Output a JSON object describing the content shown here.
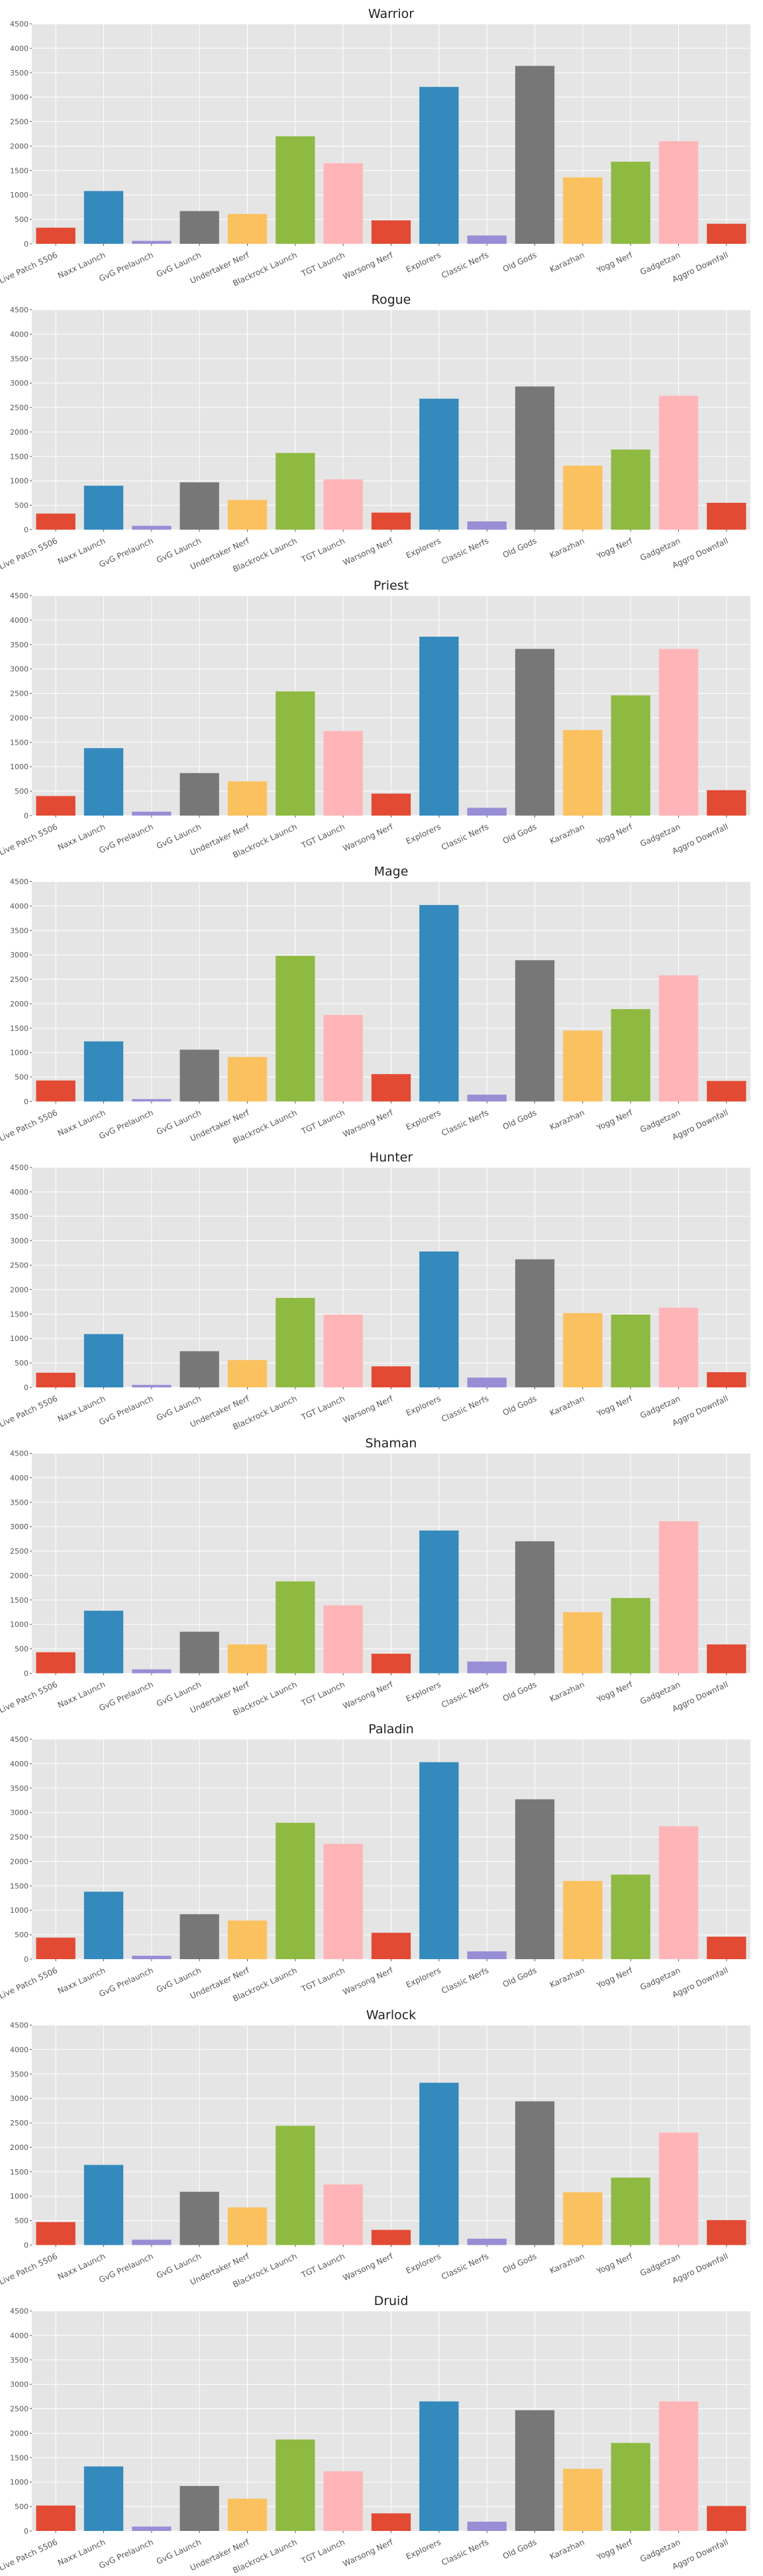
{
  "chart_data": [
    {
      "type": "bar",
      "title": "Warrior",
      "xlabel": "",
      "ylabel": "",
      "ylim": [
        0,
        4500
      ],
      "yticks": [
        0,
        500,
        1000,
        1500,
        2000,
        2500,
        3000,
        3500,
        4000,
        4500
      ],
      "grid": true,
      "categories": [
        "Live Patch 5506",
        "Naxx Launch",
        "GvG Prelaunch",
        "GvG Launch",
        "Undertaker Nerf",
        "Blackrock Launch",
        "TGT Launch",
        "Warsong Nerf",
        "Explorers",
        "Classic Nerfs",
        "Old Gods",
        "Karazhan",
        "Yogg Nerf",
        "Gadgetzan",
        "Aggro Downfall"
      ],
      "values": [
        330,
        1080,
        60,
        670,
        610,
        2200,
        1650,
        480,
        3210,
        170,
        3640,
        1360,
        1680,
        2100,
        410
      ]
    },
    {
      "type": "bar",
      "title": "Rogue",
      "xlabel": "",
      "ylabel": "",
      "ylim": [
        0,
        4500
      ],
      "yticks": [
        0,
        500,
        1000,
        1500,
        2000,
        2500,
        3000,
        3500,
        4000,
        4500
      ],
      "grid": true,
      "categories": [
        "Live Patch 5506",
        "Naxx Launch",
        "GvG Prelaunch",
        "GvG Launch",
        "Undertaker Nerf",
        "Blackrock Launch",
        "TGT Launch",
        "Warsong Nerf",
        "Explorers",
        "Classic Nerfs",
        "Old Gods",
        "Karazhan",
        "Yogg Nerf",
        "Gadgetzan",
        "Aggro Downfall"
      ],
      "values": [
        330,
        900,
        80,
        970,
        610,
        1570,
        1030,
        350,
        2680,
        170,
        2930,
        1310,
        1640,
        2740,
        550
      ]
    },
    {
      "type": "bar",
      "title": "Priest",
      "xlabel": "",
      "ylabel": "",
      "ylim": [
        0,
        4500
      ],
      "yticks": [
        0,
        500,
        1000,
        1500,
        2000,
        2500,
        3000,
        3500,
        4000,
        4500
      ],
      "grid": true,
      "categories": [
        "Live Patch 5506",
        "Naxx Launch",
        "GvG Prelaunch",
        "GvG Launch",
        "Undertaker Nerf",
        "Blackrock Launch",
        "TGT Launch",
        "Warsong Nerf",
        "Explorers",
        "Classic Nerfs",
        "Old Gods",
        "Karazhan",
        "Yogg Nerf",
        "Gadgetzan",
        "Aggro Downfall"
      ],
      "values": [
        400,
        1380,
        80,
        870,
        700,
        2540,
        1730,
        450,
        3660,
        160,
        3410,
        1750,
        2460,
        3410,
        520
      ]
    },
    {
      "type": "bar",
      "title": "Mage",
      "xlabel": "",
      "ylabel": "",
      "ylim": [
        0,
        4500
      ],
      "yticks": [
        0,
        500,
        1000,
        1500,
        2000,
        2500,
        3000,
        3500,
        4000,
        4500
      ],
      "grid": true,
      "categories": [
        "Live Patch 5506",
        "Naxx Launch",
        "GvG Prelaunch",
        "GvG Launch",
        "Undertaker Nerf",
        "Blackrock Launch",
        "TGT Launch",
        "Warsong Nerf",
        "Explorers",
        "Classic Nerfs",
        "Old Gods",
        "Karazhan",
        "Yogg Nerf",
        "Gadgetzan",
        "Aggro Downfall"
      ],
      "values": [
        430,
        1230,
        50,
        1060,
        910,
        2980,
        1770,
        560,
        4020,
        140,
        2890,
        1450,
        1890,
        2580,
        420
      ]
    },
    {
      "type": "bar",
      "title": "Hunter",
      "xlabel": "",
      "ylabel": "",
      "ylim": [
        0,
        4500
      ],
      "yticks": [
        0,
        500,
        1000,
        1500,
        2000,
        2500,
        3000,
        3500,
        4000,
        4500
      ],
      "grid": true,
      "categories": [
        "Live Patch 5506",
        "Naxx Launch",
        "GvG Prelaunch",
        "GvG Launch",
        "Undertaker Nerf",
        "Blackrock Launch",
        "TGT Launch",
        "Warsong Nerf",
        "Explorers",
        "Classic Nerfs",
        "Old Gods",
        "Karazhan",
        "Yogg Nerf",
        "Gadgetzan",
        "Aggro Downfall"
      ],
      "values": [
        300,
        1090,
        50,
        740,
        560,
        1830,
        1490,
        430,
        2780,
        200,
        2620,
        1520,
        1490,
        1630,
        310
      ]
    },
    {
      "type": "bar",
      "title": "Shaman",
      "xlabel": "",
      "ylabel": "",
      "ylim": [
        0,
        4500
      ],
      "yticks": [
        0,
        500,
        1000,
        1500,
        2000,
        2500,
        3000,
        3500,
        4000,
        4500
      ],
      "grid": true,
      "categories": [
        "Live Patch 5506",
        "Naxx Launch",
        "GvG Prelaunch",
        "GvG Launch",
        "Undertaker Nerf",
        "Blackrock Launch",
        "TGT Launch",
        "Warsong Nerf",
        "Explorers",
        "Classic Nerfs",
        "Old Gods",
        "Karazhan",
        "Yogg Nerf",
        "Gadgetzan",
        "Aggro Downfall"
      ],
      "values": [
        430,
        1280,
        80,
        850,
        590,
        1880,
        1390,
        400,
        2920,
        240,
        2700,
        1250,
        1540,
        3110,
        590
      ]
    },
    {
      "type": "bar",
      "title": "Paladin",
      "xlabel": "",
      "ylabel": "",
      "ylim": [
        0,
        4500
      ],
      "yticks": [
        0,
        500,
        1000,
        1500,
        2000,
        2500,
        3000,
        3500,
        4000,
        4500
      ],
      "grid": true,
      "categories": [
        "Live Patch 5506",
        "Naxx Launch",
        "GvG Prelaunch",
        "GvG Launch",
        "Undertaker Nerf",
        "Blackrock Launch",
        "TGT Launch",
        "Warsong Nerf",
        "Explorers",
        "Classic Nerfs",
        "Old Gods",
        "Karazhan",
        "Yogg Nerf",
        "Gadgetzan",
        "Aggro Downfall"
      ],
      "values": [
        440,
        1380,
        70,
        920,
        790,
        2790,
        2360,
        540,
        4030,
        160,
        3270,
        1600,
        1730,
        2720,
        460
      ]
    },
    {
      "type": "bar",
      "title": "Warlock",
      "xlabel": "",
      "ylabel": "",
      "ylim": [
        0,
        4500
      ],
      "yticks": [
        0,
        500,
        1000,
        1500,
        2000,
        2500,
        3000,
        3500,
        4000,
        4500
      ],
      "grid": true,
      "categories": [
        "Live Patch 5506",
        "Naxx Launch",
        "GvG Prelaunch",
        "GvG Launch",
        "Undertaker Nerf",
        "Blackrock Launch",
        "TGT Launch",
        "Warsong Nerf",
        "Explorers",
        "Classic Nerfs",
        "Old Gods",
        "Karazhan",
        "Yogg Nerf",
        "Gadgetzan",
        "Aggro Downfall"
      ],
      "values": [
        470,
        1640,
        110,
        1090,
        770,
        2440,
        1240,
        310,
        3320,
        130,
        2940,
        1080,
        1380,
        2300,
        510
      ]
    },
    {
      "type": "bar",
      "title": "Druid",
      "xlabel": "",
      "ylabel": "",
      "ylim": [
        0,
        4500
      ],
      "yticks": [
        0,
        500,
        1000,
        1500,
        2000,
        2500,
        3000,
        3500,
        4000,
        4500
      ],
      "grid": true,
      "categories": [
        "Live Patch 5506",
        "Naxx Launch",
        "GvG Prelaunch",
        "GvG Launch",
        "Undertaker Nerf",
        "Blackrock Launch",
        "TGT Launch",
        "Warsong Nerf",
        "Explorers",
        "Classic Nerfs",
        "Old Gods",
        "Karazhan",
        "Yogg Nerf",
        "Gadgetzan",
        "Aggro Downfall"
      ],
      "values": [
        520,
        1320,
        90,
        920,
        660,
        1870,
        1220,
        360,
        2650,
        190,
        2470,
        1270,
        1800,
        2650,
        510
      ]
    }
  ],
  "colors": [
    "#E24A33",
    "#348ABD",
    "#988ED5",
    "#777777",
    "#FBC15E",
    "#8EBA42",
    "#FFB5B8"
  ],
  "plot_background": "#E5E5E5",
  "grid_color": "#FFFFFF"
}
